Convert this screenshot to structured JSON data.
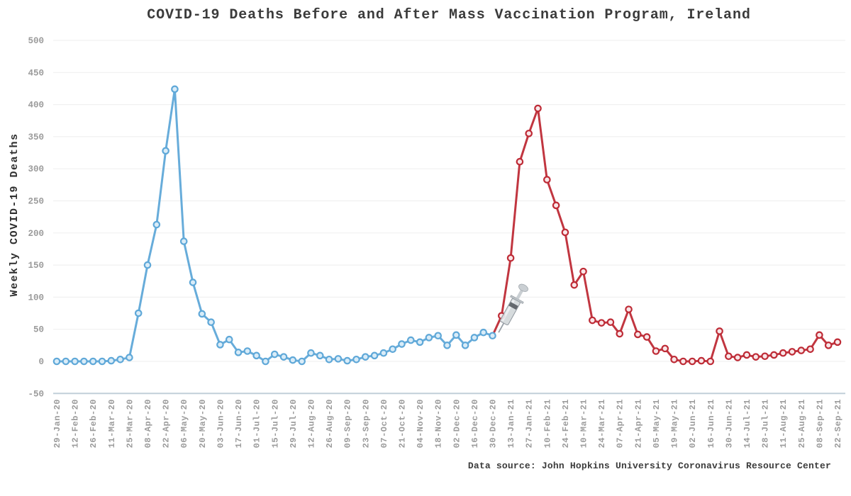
{
  "chart_data": {
    "type": "line",
    "title": "COVID-19 Deaths Before and After Mass Vaccination Program, Ireland",
    "ylabel": "Weekly COVID-19 Deaths",
    "source": "Data source: John Hopkins University Coronavirus Resource Center",
    "ylim": [
      -50,
      500
    ],
    "yticks": [
      500,
      450,
      400,
      350,
      300,
      250,
      200,
      150,
      100,
      50,
      0,
      -50
    ],
    "grid": "horizontal",
    "legend": "none",
    "x_tick_every": 2,
    "dates": [
      "29-Jan-20",
      "05-Feb-20",
      "12-Feb-20",
      "19-Feb-20",
      "26-Feb-20",
      "04-Mar-20",
      "11-Mar-20",
      "18-Mar-20",
      "25-Mar-20",
      "01-Apr-20",
      "08-Apr-20",
      "15-Apr-20",
      "22-Apr-20",
      "29-Apr-20",
      "06-May-20",
      "13-May-20",
      "20-May-20",
      "27-May-20",
      "03-Jun-20",
      "10-Jun-20",
      "17-Jun-20",
      "24-Jun-20",
      "01-Jul-20",
      "08-Jul-20",
      "15-Jul-20",
      "22-Jul-20",
      "29-Jul-20",
      "05-Aug-20",
      "12-Aug-20",
      "19-Aug-20",
      "26-Aug-20",
      "02-Sep-20",
      "09-Sep-20",
      "16-Sep-20",
      "23-Sep-20",
      "30-Sep-20",
      "07-Oct-20",
      "14-Oct-20",
      "21-Oct-20",
      "28-Oct-20",
      "04-Nov-20",
      "11-Nov-20",
      "18-Nov-20",
      "25-Nov-20",
      "02-Dec-20",
      "09-Dec-20",
      "16-Dec-20",
      "23-Dec-20",
      "30-Dec-20",
      "06-Jan-21",
      "13-Jan-21",
      "20-Jan-21",
      "27-Jan-21",
      "03-Feb-21",
      "10-Feb-21",
      "17-Feb-21",
      "24-Feb-21",
      "03-Mar-21",
      "10-Mar-21",
      "17-Mar-21",
      "24-Mar-21",
      "31-Mar-21",
      "07-Apr-21",
      "14-Apr-21",
      "21-Apr-21",
      "28-Apr-21",
      "05-May-21",
      "12-May-21",
      "19-May-21",
      "26-May-21",
      "02-Jun-21",
      "09-Jun-21",
      "16-Jun-21",
      "23-Jun-21",
      "30-Jun-21",
      "07-Jul-21",
      "14-Jul-21",
      "21-Jul-21",
      "28-Jul-21",
      "04-Aug-21",
      "11-Aug-21",
      "18-Aug-21",
      "25-Aug-21",
      "01-Sep-21",
      "08-Sep-21",
      "15-Sep-21",
      "22-Sep-21"
    ],
    "series": [
      {
        "name": "before-mass-vaccination",
        "color": "#5FA8D8",
        "marker_fill": "#D9ECF8",
        "start_index": 0,
        "values": [
          0,
          0,
          0,
          0,
          0,
          0,
          1,
          3,
          6,
          75,
          150,
          213,
          328,
          424,
          187,
          123,
          74,
          61,
          26,
          34,
          14,
          16,
          9,
          0,
          11,
          7,
          2,
          0,
          13,
          9,
          3,
          4,
          1,
          3,
          7,
          9,
          13,
          19,
          27,
          33,
          30,
          37,
          40,
          25,
          41,
          25,
          37,
          45,
          40
        ]
      },
      {
        "name": "after-mass-vaccination",
        "color": "#BE2B36",
        "marker_fill": "#F9E6E8",
        "start_index": 48,
        "values": [
          40,
          71,
          161,
          311,
          355,
          394,
          283,
          243,
          201,
          119,
          140,
          64,
          60,
          61,
          43,
          81,
          42,
          38,
          16,
          20,
          3,
          0,
          0,
          1,
          0,
          47,
          8,
          6,
          10,
          7,
          8,
          10,
          13,
          15,
          17,
          19,
          41,
          25,
          30
        ]
      }
    ],
    "annotation": {
      "icon": "syringe-icon",
      "near_date": "06-Jan-21",
      "meaning": "start of mass vaccination program"
    }
  }
}
